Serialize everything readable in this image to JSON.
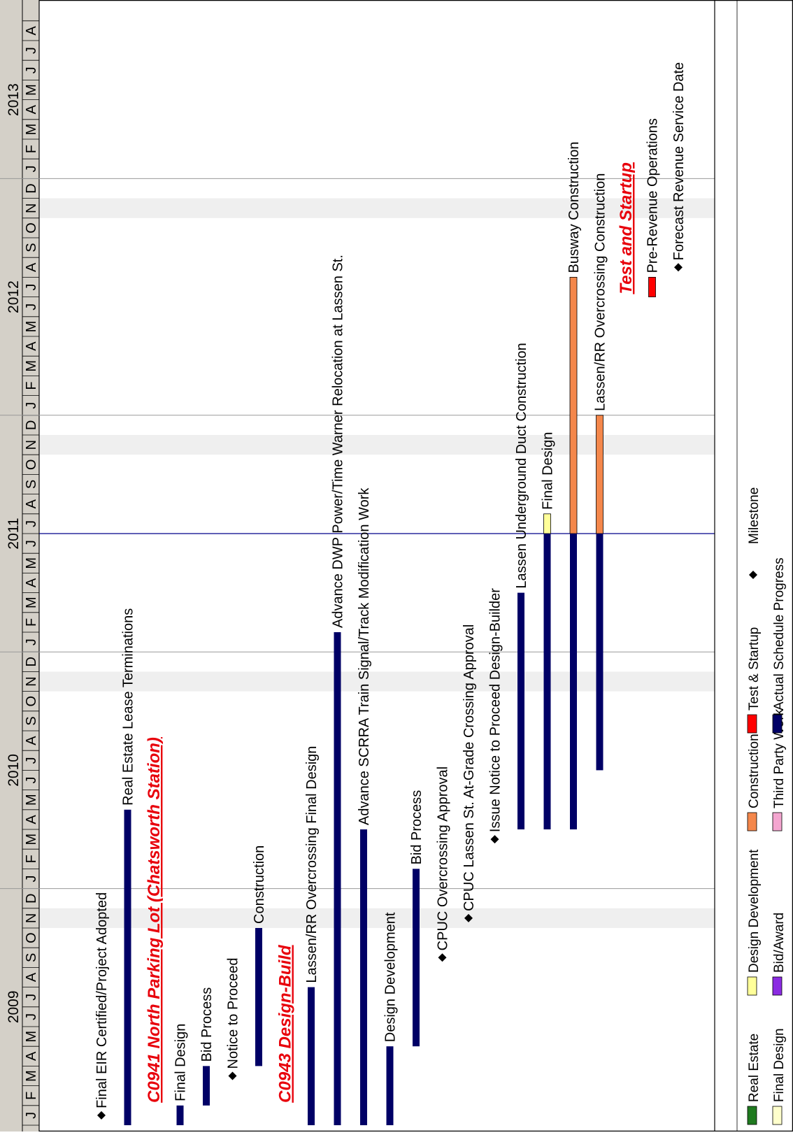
{
  "chart_data": {
    "type": "gantt",
    "title": "",
    "timeline": {
      "start": "2009-01",
      "end": "2013-08",
      "years": [
        "2009",
        "2010",
        "2011",
        "2012",
        "2013"
      ],
      "month_letters": [
        "J",
        "F",
        "M",
        "A",
        "M",
        "J",
        "J",
        "A",
        "S",
        "O",
        "N",
        "D"
      ],
      "status_date": "2011-07",
      "highlighted_months": [
        "2009-11",
        "2010-11",
        "2011-11",
        "2012-11"
      ]
    },
    "rows": [
      {
        "label": "Final EIR Certified/Project Adopted",
        "kind": "milestone",
        "date": "2009-01"
      },
      {
        "label": "Real Estate Lease Terminations",
        "kind": "bar",
        "category": "third_party",
        "start": "2009-01",
        "end": "2010-04"
      },
      {
        "label": "C0941 North Parking Lot (Chatsworth Station)",
        "kind": "section"
      },
      {
        "label": "Final Design",
        "kind": "bar",
        "category": "third_party",
        "start": "2009-01",
        "end": "2009-01"
      },
      {
        "label": "Bid Process",
        "kind": "bar",
        "category": "third_party",
        "start": "2009-02",
        "end": "2009-03"
      },
      {
        "label": "Notice to Proceed",
        "kind": "milestone",
        "date": "2009-03"
      },
      {
        "label": "Construction",
        "kind": "bar",
        "category": "third_party",
        "start": "2009-04",
        "end": "2009-10"
      },
      {
        "label": "C0943 Design-Build",
        "kind": "section"
      },
      {
        "label": "Lassen/RR Overcrossing Final Design",
        "kind": "bar",
        "category": "third_party",
        "start": "2009-01",
        "end": "2009-07"
      },
      {
        "label": "Advance DWP Power/Time Warner Relocation at Lassen St.",
        "kind": "bar",
        "category": "third_party",
        "start": "2009-01",
        "end": "2011-01"
      },
      {
        "label": "Advance SCRRA Train Signal/Track Modification Work",
        "kind": "bar",
        "category": "third_party",
        "start": "2009-01",
        "end": "2010-03"
      },
      {
        "label": "Design Development",
        "kind": "bar",
        "category": "third_party",
        "start": "2009-01",
        "end": "2009-04"
      },
      {
        "label": "Bid Process",
        "kind": "bar",
        "category": "third_party",
        "start": "2009-05",
        "end": "2010-01"
      },
      {
        "label": "CPUC Overcrossing Approval",
        "kind": "milestone",
        "date": "2009-09"
      },
      {
        "label": "CPUC Lassen St. At-Grade Crossing Approval",
        "kind": "milestone",
        "date": "2009-11"
      },
      {
        "label": "Issue Notice to Proceed Design-Builder",
        "kind": "milestone",
        "date": "2010-03"
      },
      {
        "label": "Lassen Underground Duct Construction",
        "kind": "bar",
        "category": "third_party",
        "start": "2010-04",
        "end": "2011-03"
      },
      {
        "label": "Final Design",
        "kind": "bar",
        "category": "third_party",
        "start": "2010-04",
        "end": "2011-06",
        "plan_end": "2011-07",
        "plan_category": "design_dev"
      },
      {
        "label": "Busway Construction",
        "kind": "bar",
        "category": "third_party",
        "start": "2010-04",
        "end": "2011-06",
        "plan_end": "2012-07",
        "plan_category": "construction"
      },
      {
        "label": "Lassen/RR Overcrossing Construction",
        "kind": "bar",
        "category": "third_party",
        "start": "2010-07",
        "end": "2011-06",
        "plan_end": "2011-12",
        "plan_category": "construction"
      },
      {
        "label": "Test and Startup",
        "kind": "section"
      },
      {
        "label": "Pre-Revenue Operations",
        "kind": "bar",
        "category": "test_startup",
        "start": "2012-07",
        "end": "2012-07"
      },
      {
        "label": "Forecast Revenue Service Date",
        "kind": "milestone",
        "date": "2012-08"
      }
    ],
    "legend": [
      {
        "key": "real_estate",
        "label": "Real Estate",
        "color": "#1f7a1f",
        "shape": "bar"
      },
      {
        "key": "design_dev",
        "label": "Design Development",
        "color": "#ffff99",
        "shape": "bar"
      },
      {
        "key": "construction",
        "label": "Construction",
        "color": "#f4874b",
        "shape": "bar"
      },
      {
        "key": "test_startup",
        "label": "Test & Startup",
        "color": "#ff0000",
        "shape": "bar"
      },
      {
        "key": "milestone",
        "label": "Milestone",
        "color": "#000000",
        "shape": "diamond"
      },
      {
        "key": "final_design",
        "label": "Final Design",
        "color": "#ffffcc",
        "shape": "bar"
      },
      {
        "key": "bid_award",
        "label": "Bid/Award",
        "color": "#8b2be2",
        "shape": "bar"
      },
      {
        "key": "third_party",
        "label": "Third Party Work",
        "color": "#f4a6d0",
        "shape": "bar"
      },
      {
        "key": "actual",
        "label": "Actual Schedule Progress",
        "color": "#000066",
        "shape": "bar"
      }
    ],
    "colors": {
      "actual": "#000066",
      "section_title": "#e8000b",
      "header_fill": "#d4d0c8",
      "highlight_fill": "#efefef",
      "status_line": "#00008b"
    }
  }
}
